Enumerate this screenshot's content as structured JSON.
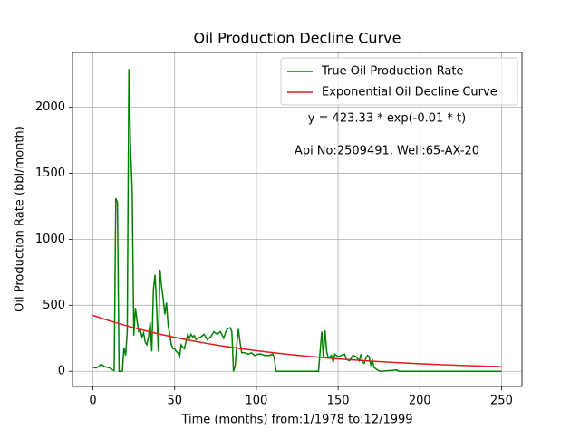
{
  "chart_data": {
    "type": "line",
    "title": "Oil Production Decline Curve",
    "xlabel": "Time (months) from:1/1978 to:12/1999",
    "ylabel": "Oil Production Rate (bbl/month)",
    "annotations": [
      "y = 423.33 * exp(-0.01 * t)",
      "Api No:2509491, Well:65-AX-20"
    ],
    "xlim": [
      -12.5,
      262.5
    ],
    "ylim": [
      -115,
      2415
    ],
    "xticks": [
      0,
      50,
      100,
      150,
      200,
      250
    ],
    "yticks": [
      0,
      500,
      1000,
      1500,
      2000
    ],
    "grid": true,
    "legend": "upper right",
    "series": [
      {
        "name": "True Oil Production Rate",
        "color": "#008000",
        "x": [
          0,
          2,
          4,
          5,
          6,
          7,
          9,
          11,
          12,
          13,
          14,
          15,
          16,
          17,
          18,
          19,
          20,
          21,
          22,
          23,
          24,
          25,
          26,
          27,
          28,
          29,
          30,
          31,
          32,
          33,
          34,
          35,
          36,
          37,
          38,
          39,
          40,
          41,
          42,
          43,
          44,
          45,
          46,
          47,
          48,
          49,
          50,
          51,
          52,
          53,
          54,
          55,
          56,
          57,
          58,
          59,
          60,
          61,
          62,
          63,
          64,
          66,
          68,
          70,
          72,
          74,
          76,
          78,
          80,
          82,
          84,
          85,
          86,
          87,
          88,
          89,
          90,
          91,
          93,
          95,
          97,
          99,
          101,
          103,
          105,
          108,
          110,
          111,
          112,
          115,
          138,
          139,
          140,
          141,
          142,
          143,
          144,
          146,
          147,
          148,
          150,
          152,
          154,
          155,
          157,
          159,
          161,
          163,
          164,
          165,
          166,
          167,
          168,
          169,
          170,
          171,
          172,
          174,
          176,
          186,
          187,
          250
        ],
        "values": [
          30,
          25,
          40,
          55,
          45,
          35,
          30,
          20,
          10,
          5,
          1310,
          1280,
          0,
          0,
          0,
          180,
          120,
          300,
          2290,
          1700,
          1380,
          270,
          480,
          380,
          300,
          310,
          260,
          290,
          220,
          200,
          260,
          370,
          150,
          620,
          730,
          480,
          150,
          770,
          640,
          550,
          430,
          520,
          350,
          280,
          200,
          170,
          170,
          150,
          140,
          110,
          200,
          180,
          170,
          230,
          280,
          250,
          280,
          260,
          270,
          240,
          250,
          260,
          280,
          240,
          260,
          300,
          280,
          300,
          250,
          320,
          330,
          300,
          0,
          40,
          200,
          320,
          220,
          140,
          140,
          130,
          140,
          120,
          130,
          130,
          120,
          120,
          130,
          100,
          0,
          0,
          0,
          150,
          300,
          100,
          310,
          150,
          100,
          120,
          70,
          130,
          110,
          120,
          130,
          90,
          80,
          120,
          110,
          80,
          130,
          70,
          60,
          100,
          120,
          110,
          50,
          80,
          30,
          10,
          0,
          10,
          0,
          0
        ]
      },
      {
        "name": "Exponential Oil Decline Curve",
        "color": "#e41a1c",
        "x": [
          0,
          10,
          20,
          30,
          40,
          50,
          60,
          70,
          80,
          90,
          100,
          110,
          120,
          130,
          140,
          150,
          160,
          170,
          180,
          190,
          200,
          210,
          220,
          230,
          240,
          250
        ],
        "values": [
          423.3,
          383.0,
          346.6,
          313.6,
          283.8,
          256.8,
          232.3,
          210.2,
          190.2,
          172.1,
          155.7,
          140.9,
          127.5,
          115.4,
          104.4,
          94.5,
          85.5,
          77.3,
          70.0,
          63.3,
          57.3,
          51.8,
          46.9,
          42.4,
          38.4,
          34.7
        ]
      }
    ]
  }
}
